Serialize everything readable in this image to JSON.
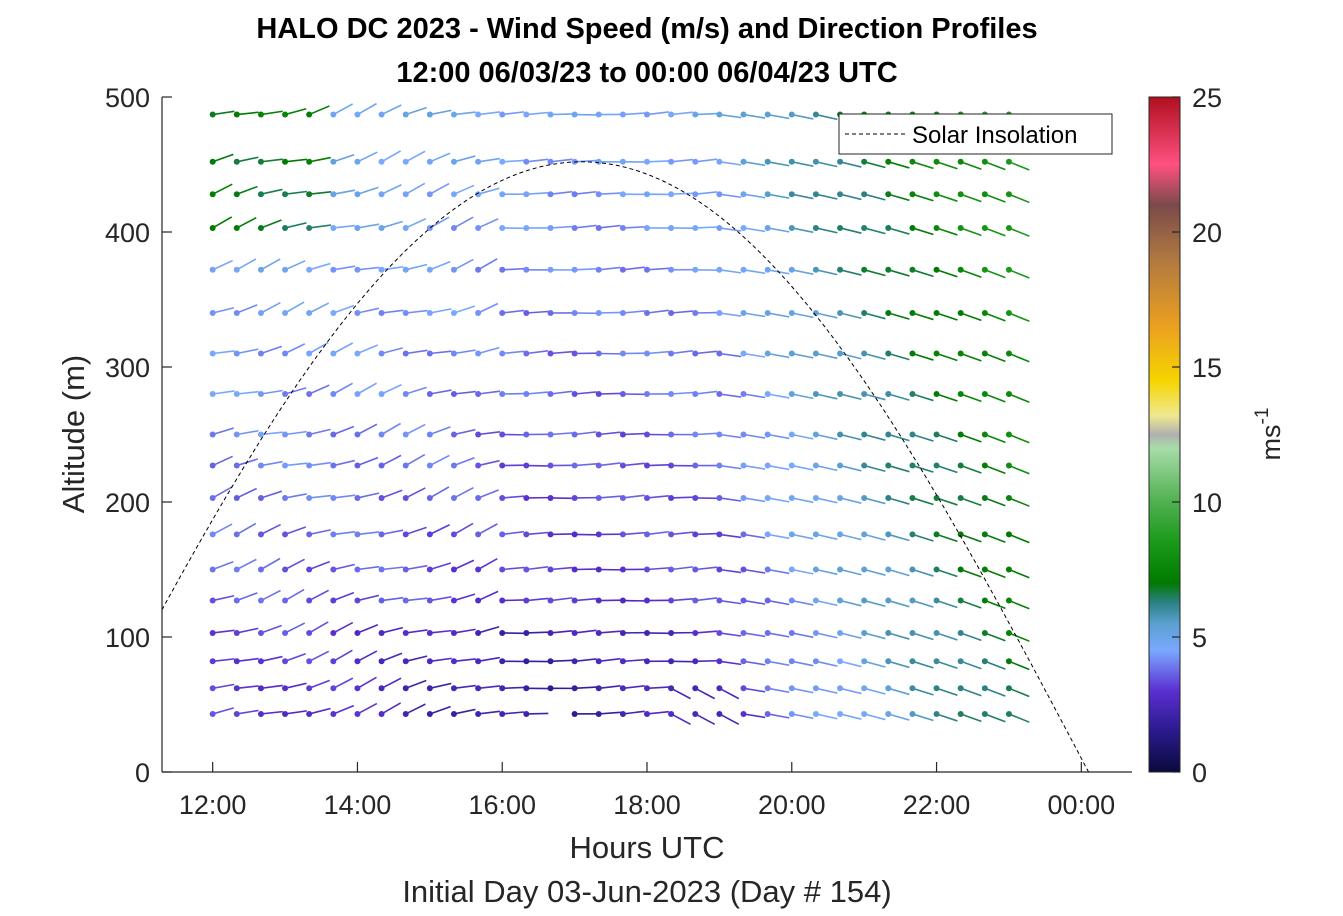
{
  "chart_data": {
    "type": "quiver",
    "title": "HALO DC 2023 - Wind Speed (m/s) and Direction Profiles",
    "subtitle": "12:00 06/03/23 to 00:00 06/04/23  UTC",
    "xlabel": "Hours UTC",
    "ylabel": "Altitude (m)",
    "footer": "Initial Day 03-Jun-2023 (Day # 154)",
    "x_tick_labels": [
      "12:00",
      "14:00",
      "16:00",
      "18:00",
      "20:00",
      "22:00",
      "00:00"
    ],
    "x_tick_hours": [
      12,
      14,
      16,
      18,
      20,
      22,
      24
    ],
    "xlim_hours": [
      11.3,
      24.7
    ],
    "ylim": [
      0,
      500
    ],
    "y_ticks": [
      0,
      100,
      200,
      300,
      400,
      500
    ],
    "grid": false,
    "legend": {
      "placement": "top-right",
      "entries": [
        "Solar Insolation"
      ]
    },
    "colorbar": {
      "label": "ms",
      "label_exponent": "-1",
      "range": [
        0,
        25
      ],
      "ticks": [
        0,
        5,
        10,
        15,
        20,
        25
      ],
      "stops": [
        {
          "v": 0,
          "c": "#0a0a3c"
        },
        {
          "v": 1.5,
          "c": "#2a1a8c"
        },
        {
          "v": 3,
          "c": "#5a2fd0"
        },
        {
          "v": 4.5,
          "c": "#7aa8ff"
        },
        {
          "v": 5.5,
          "c": "#5aa0d0"
        },
        {
          "v": 6.3,
          "c": "#2a8080"
        },
        {
          "v": 7,
          "c": "#007a00"
        },
        {
          "v": 8.5,
          "c": "#1a9a1a"
        },
        {
          "v": 10,
          "c": "#50b050"
        },
        {
          "v": 12,
          "c": "#a8dca8"
        },
        {
          "v": 12.5,
          "c": "#b0b0b0"
        },
        {
          "v": 13.2,
          "c": "#f0e890"
        },
        {
          "v": 14.5,
          "c": "#f5d500"
        },
        {
          "v": 16.5,
          "c": "#eba020"
        },
        {
          "v": 19,
          "c": "#b07840"
        },
        {
          "v": 21,
          "c": "#7a4a4a"
        },
        {
          "v": 22.5,
          "c": "#ff5080"
        },
        {
          "v": 25,
          "c": "#b01020"
        }
      ]
    },
    "solar_insolation": {
      "style": "dashed",
      "color": "#000000",
      "peak_hour": 17.1,
      "peak_altitude": 452,
      "sunrise_hour": 10.2,
      "sunset_hour": 24.2
    },
    "altitudes": [
      43,
      62,
      82,
      103,
      127,
      150,
      176,
      203,
      227,
      250,
      280,
      310,
      340,
      372,
      403,
      428,
      452,
      487
    ],
    "times_hours": [
      12.0,
      12.333,
      12.667,
      13.0,
      13.333,
      13.667,
      14.0,
      14.333,
      14.667,
      15.0,
      15.333,
      15.667,
      16.0,
      16.333,
      16.667,
      17.0,
      17.333,
      17.667,
      18.0,
      18.333,
      18.667,
      19.0,
      19.333,
      19.667,
      20.0,
      20.333,
      20.667,
      21.0,
      21.333,
      21.667,
      22.0,
      22.333,
      22.667,
      23.0
    ],
    "speed_description": "wind speed in m/s per time and altitude; direction shown by tail angle"
  }
}
